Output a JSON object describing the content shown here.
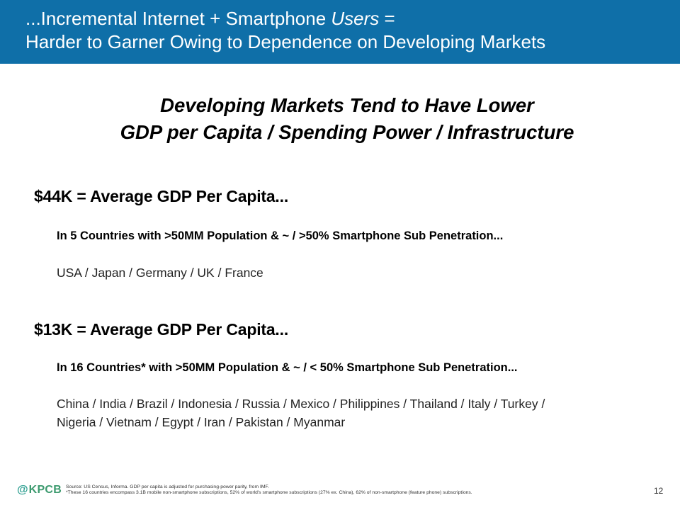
{
  "header": {
    "title_line1_prefix": "...Incremental Internet + Smartphone ",
    "title_line1_italic": "Users",
    "title_line1_suffix": " =",
    "title_line2": "Harder to Garner Owing to Dependence on Developing Markets",
    "background": "#0f6fa8"
  },
  "subtitle": {
    "line1": "Developing Markets Tend to Have Lower",
    "line2": "GDP per Capita / Spending Power / Infrastructure"
  },
  "sections": [
    {
      "heading": "$44K = Average GDP Per Capita...",
      "criteria": "In 5 Countries with >50MM Population & ~ / >50%  Smartphone Sub Penetration...",
      "countries_line1": "USA / Japan / Germany / UK / France",
      "countries_line2": ""
    },
    {
      "heading": "$13K = Average GDP Per Capita...",
      "criteria": "In 16 Countries* with >50MM Population & ~ / < 50%  Smartphone Sub Penetration...",
      "countries_line1": "China / India / Brazil / Indonesia / Russia / Mexico / Philippines / Thailand / Italy / Turkey /",
      "countries_line2": "Nigeria / Vietnam / Egypt / Iran / Pakistan / Myanmar"
    }
  ],
  "footer": {
    "logo_at": "@",
    "logo_brand": "KPCB",
    "source": "Source: US Census, Informa. GDP per capita is adjusted for purchasing-power parity, from IMF.",
    "note": "*These 16 countries encompass 3.1B mobile non-smartphone subscriptions, 52% of world's smartphone subscriptions (27% ex. China), 62% of non-smartphone (feature phone) subscriptions.",
    "page_number": "12",
    "logo_color": "#3c9a6e"
  }
}
